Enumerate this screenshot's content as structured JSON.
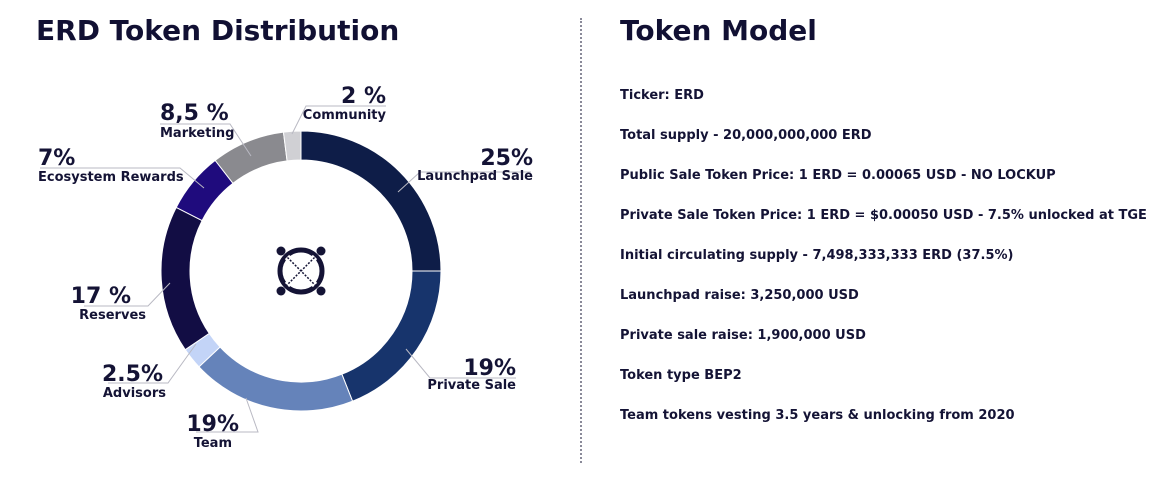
{
  "left": {
    "title": "ERD Token Distribution"
  },
  "right": {
    "title": "Token Model",
    "items": [
      "Ticker: ERD",
      "Total supply - 20,000,000,000 ERD",
      "Public Sale Token Price: 1 ERD = 0.00065 USD - NO LOCKUP",
      "Private Sale Token Price: 1 ERD = $0.00050 USD - 7.5% unlocked at TGE",
      "Initial circulating supply - 7,498,333,333 ERD (37.5%)",
      "Launchpad raise: 3,250,000 USD",
      "Private sale raise: 1,900,000 USD",
      "Token type BEP2",
      "Team tokens vesting 3.5 years & unlocking from 2020"
    ]
  },
  "chart_data": {
    "type": "pie",
    "title": "ERD Token Distribution",
    "slices": [
      {
        "label": "Launchpad Sale",
        "value": 25,
        "value_label": "25%",
        "color": "#0e1d48"
      },
      {
        "label": "Private Sale",
        "value": 19,
        "value_label": "19%",
        "color": "#17346c"
      },
      {
        "label": "Team",
        "value": 19,
        "value_label": "19%",
        "color": "#6583ba"
      },
      {
        "label": "Advisors",
        "value": 2.5,
        "value_label": "2.5%",
        "color": "#c3d4f7"
      },
      {
        "label": "Reserves",
        "value": 17,
        "value_label": "17 %",
        "color": "#120d44"
      },
      {
        "label": "Ecosystem  Rewards",
        "value": 7,
        "value_label": "7%",
        "color": "#1f0b7d"
      },
      {
        "label": "Marketing",
        "value": 8.5,
        "value_label": "8,5 %",
        "color": "#8a8a8f"
      },
      {
        "label": "Community",
        "value": 2,
        "value_label": "2 %",
        "color": "#d0d0d4"
      }
    ],
    "legend": "none",
    "center_icon": "elrond-logo-icon"
  }
}
